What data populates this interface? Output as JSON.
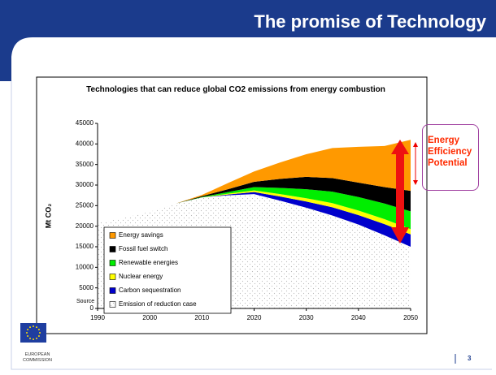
{
  "slide": {
    "title": "The promise of Technology",
    "organization": "EUROPEAN COMMISSION",
    "page": "3"
  },
  "chart_data": {
    "type": "stacked_area",
    "title": "Technologies that can reduce global CO2 emissions from energy combustion",
    "ylabel": "Mt CO₂",
    "source": "Source",
    "annotation": "Energy Efficiency Potential",
    "x": [
      1990,
      1995,
      2000,
      2005,
      2010,
      2015,
      2020,
      2025,
      2030,
      2035,
      2040,
      2045,
      2050
    ],
    "xlim": [
      1990,
      2050
    ],
    "xticks": [
      1990,
      2000,
      2010,
      2020,
      2030,
      2040,
      2050
    ],
    "ylim": [
      0,
      45000
    ],
    "yticks": [
      0,
      5000,
      10000,
      15000,
      20000,
      25000,
      30000,
      35000,
      40000,
      45000
    ],
    "series": [
      {
        "name": "Emission of reduction case",
        "color": "#ffffff",
        "pattern": "dots",
        "values": [
          20800,
          22000,
          23500,
          25500,
          27000,
          27500,
          27800,
          26200,
          24500,
          22600,
          20400,
          17800,
          15000
        ]
      },
      {
        "name": "Carbon sequestration",
        "color": "#0000cc",
        "values": [
          0,
          0,
          0,
          0,
          0,
          200,
          500,
          1000,
          1500,
          2000,
          2300,
          2700,
          3000
        ]
      },
      {
        "name": "Nuclear energy",
        "color": "#ffff00",
        "values": [
          0,
          0,
          0,
          0,
          0,
          200,
          400,
          600,
          800,
          1000,
          1100,
          1200,
          1300
        ]
      },
      {
        "name": "Renewable energies",
        "color": "#00ee00",
        "values": [
          0,
          0,
          0,
          0,
          100,
          400,
          800,
          1500,
          2200,
          2800,
          3300,
          3800,
          4300
        ]
      },
      {
        "name": "Fossil fuel switch",
        "color": "#000000",
        "values": [
          0,
          0,
          0,
          0,
          200,
          700,
          1300,
          2200,
          3000,
          3300,
          3500,
          4000,
          5000
        ]
      },
      {
        "name": "Energy savings",
        "color": "#ff9900",
        "values": [
          0,
          0,
          0,
          0,
          300,
          1500,
          2500,
          4000,
          5500,
          7300,
          8700,
          10000,
          12400
        ]
      }
    ]
  }
}
